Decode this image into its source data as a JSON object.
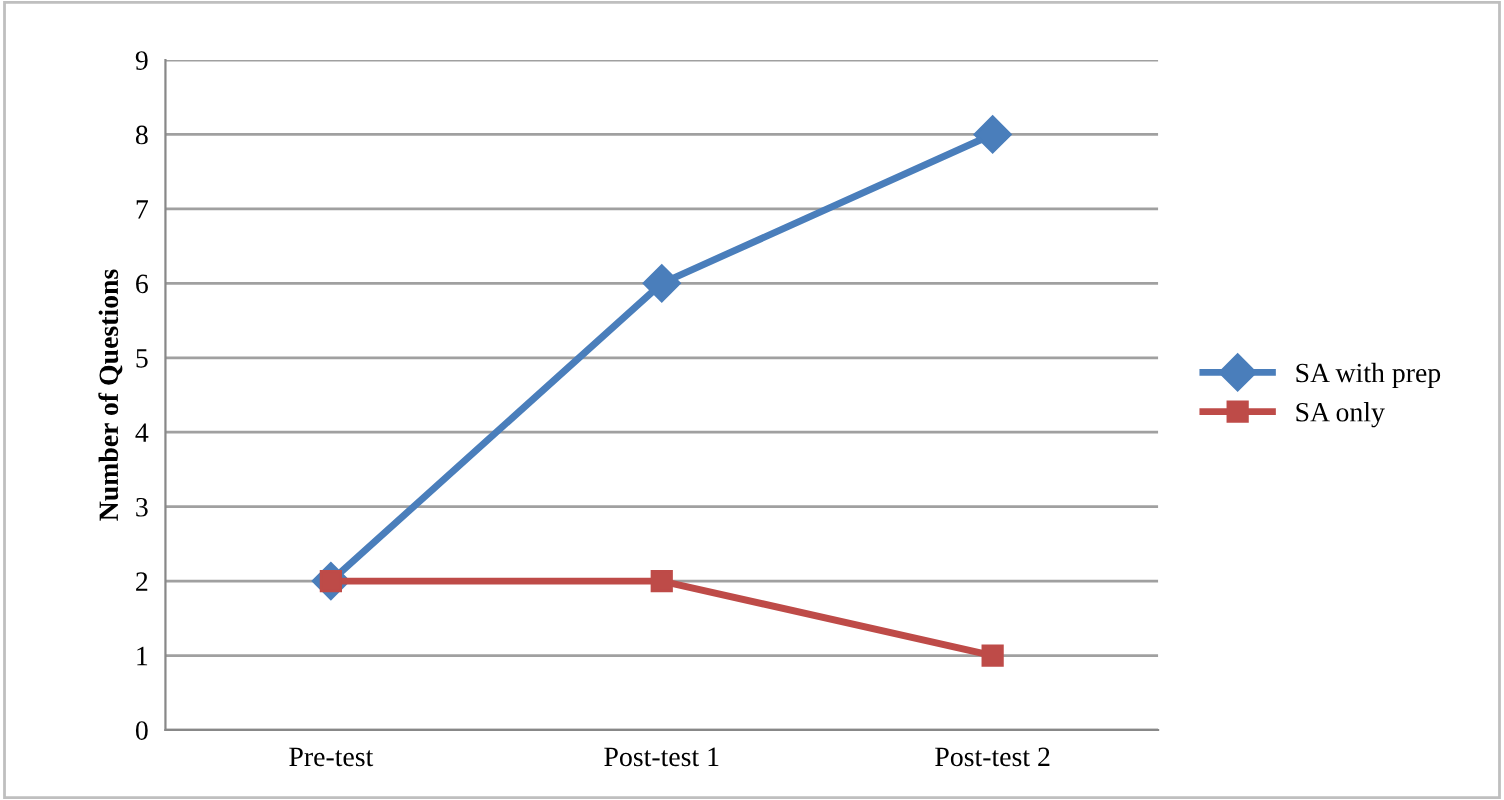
{
  "chart_data": {
    "type": "line",
    "ylabel": "Number of Questions",
    "categories": [
      "Pre-test",
      "Post-test 1",
      "Post-test 2"
    ],
    "series": [
      {
        "name": "SA with prep",
        "color": "#4a7ebb",
        "marker": "diamond",
        "values": [
          2,
          6,
          8
        ]
      },
      {
        "name": "SA only",
        "color": "#be4b48",
        "marker": "square",
        "values": [
          2,
          2,
          1
        ]
      }
    ],
    "ylim": [
      0,
      9
    ],
    "yticks": [
      0,
      1,
      2,
      3,
      4,
      5,
      6,
      7,
      8,
      9
    ],
    "grid": "y",
    "legend": "right",
    "line_style": "solid"
  }
}
